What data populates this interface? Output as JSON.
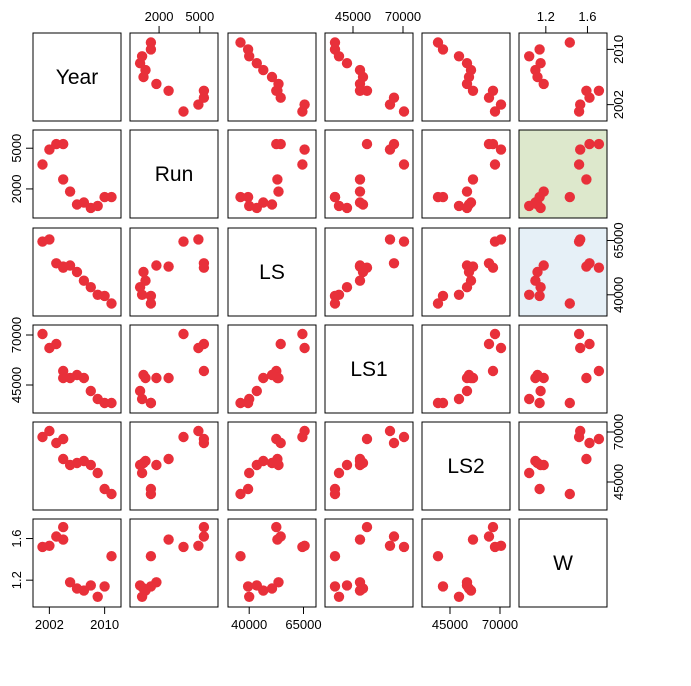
{
  "chart_data": {
    "type": "scatter",
    "variables": [
      "Year",
      "Run",
      "LS",
      "LS1",
      "LS2",
      "W"
    ],
    "ranges": {
      "Year": [
        2000.5,
        2011.5
      ],
      "Run": [
        300,
        5900
      ],
      "LS": [
        33000,
        68000
      ],
      "LS1": [
        34000,
        72000
      ],
      "LS2": [
        34000,
        72000
      ],
      "W": [
        1.0,
        1.73
      ]
    },
    "ticks": {
      "Year": {
        "values": [
          2002,
          2010
        ],
        "labels": [
          "2002",
          "2010"
        ]
      },
      "Run": {
        "values": [
          2000,
          5000
        ],
        "labels": [
          "2000",
          "5000"
        ]
      },
      "LS": {
        "values": [
          40000,
          65000
        ],
        "labels": [
          "40000",
          "65000"
        ]
      },
      "LS1": {
        "values": [
          45000,
          70000
        ],
        "labels": [
          "45000",
          "70000"
        ]
      },
      "LS2": {
        "values": [
          45000,
          70000
        ],
        "labels": [
          "45000",
          "70000"
        ]
      },
      "W": {
        "values": [
          1.2,
          1.6
        ],
        "labels": [
          "1.2",
          "1.6"
        ]
      }
    },
    "bottom_axes": {
      "Year": [
        2002,
        2010
      ],
      "LS": [
        40000,
        65000
      ],
      "LS2": [
        45000,
        70000
      ]
    },
    "top_axes": {
      "Run": [
        2000,
        5000
      ],
      "LS1": [
        45000,
        70000
      ],
      "W": [
        1.2,
        1.6
      ]
    },
    "left_axes": {
      "Run": [
        2000,
        5000
      ],
      "LS1": [
        45000,
        70000
      ],
      "W": [
        1.2,
        1.6
      ]
    },
    "right_axes": {
      "Year": [
        2002,
        2010
      ],
      "LS": [
        40000,
        65000
      ],
      "LS2": [
        45000,
        70000
      ]
    },
    "axis_tick_labels": {
      "bottom": [
        "2002",
        "2010",
        "40000",
        "65000",
        "45000",
        "70000"
      ],
      "top": [
        "2000",
        "5000",
        "45000",
        "70000",
        "1.2",
        "1.6"
      ],
      "left": [
        "5000",
        "2000",
        "70000",
        "45000",
        "1.6",
        "1.2"
      ],
      "right": [
        "2010",
        "2002",
        "65000",
        "40000",
        "70000",
        "45000"
      ]
    },
    "observations": [
      {
        "Year": 2001,
        "Run": 3800,
        "LS": 64500,
        "LS1": 70500,
        "LS2": 67500,
        "W": 1.52
      },
      {
        "Year": 2002,
        "Run": 4900,
        "LS": 65500,
        "LS1": 63500,
        "LS2": 70500,
        "W": 1.53
      },
      {
        "Year": 2003,
        "Run": 5300,
        "LS": 54500,
        "LS1": 65500,
        "LS2": 64500,
        "W": 1.62
      },
      {
        "Year": 2004,
        "Run": 5300,
        "LS": 52500,
        "LS1": 52000,
        "LS2": 66500,
        "W": 1.71
      },
      {
        "Year": 2004,
        "Run": 2700,
        "LS": 53000,
        "LS1": 48500,
        "LS2": 56500,
        "W": 1.59
      },
      {
        "Year": 2005,
        "Run": 1800,
        "LS": 53500,
        "LS1": 48500,
        "LS2": 53500,
        "W": 1.18
      },
      {
        "Year": 2006,
        "Run": 850,
        "LS": 50500,
        "LS1": 50000,
        "LS2": 54500,
        "W": 1.12
      },
      {
        "Year": 2007,
        "Run": 1000,
        "LS": 46500,
        "LS1": 48500,
        "LS2": 55500,
        "W": 1.1
      },
      {
        "Year": 2008,
        "Run": 600,
        "LS": 43500,
        "LS1": 42000,
        "LS2": 53500,
        "W": 1.15
      },
      {
        "Year": 2009,
        "Run": 750,
        "LS": 40000,
        "LS1": 38000,
        "LS2": 49500,
        "W": 1.04
      },
      {
        "Year": 2010,
        "Run": 1400,
        "LS": 39500,
        "LS1": 36000,
        "LS2": 41500,
        "W": 1.14
      },
      {
        "Year": 2011,
        "Run": 1400,
        "LS": 36000,
        "LS1": 36000,
        "LS2": 39000,
        "W": 1.43
      }
    ],
    "panel_backgrounds": [
      {
        "row": 1,
        "col": 5,
        "color": "#dde8cc"
      },
      {
        "row": 2,
        "col": 5,
        "color": "#e6f0f7"
      }
    ],
    "point_color": "#e8303a",
    "grid": false,
    "legend": "none"
  }
}
